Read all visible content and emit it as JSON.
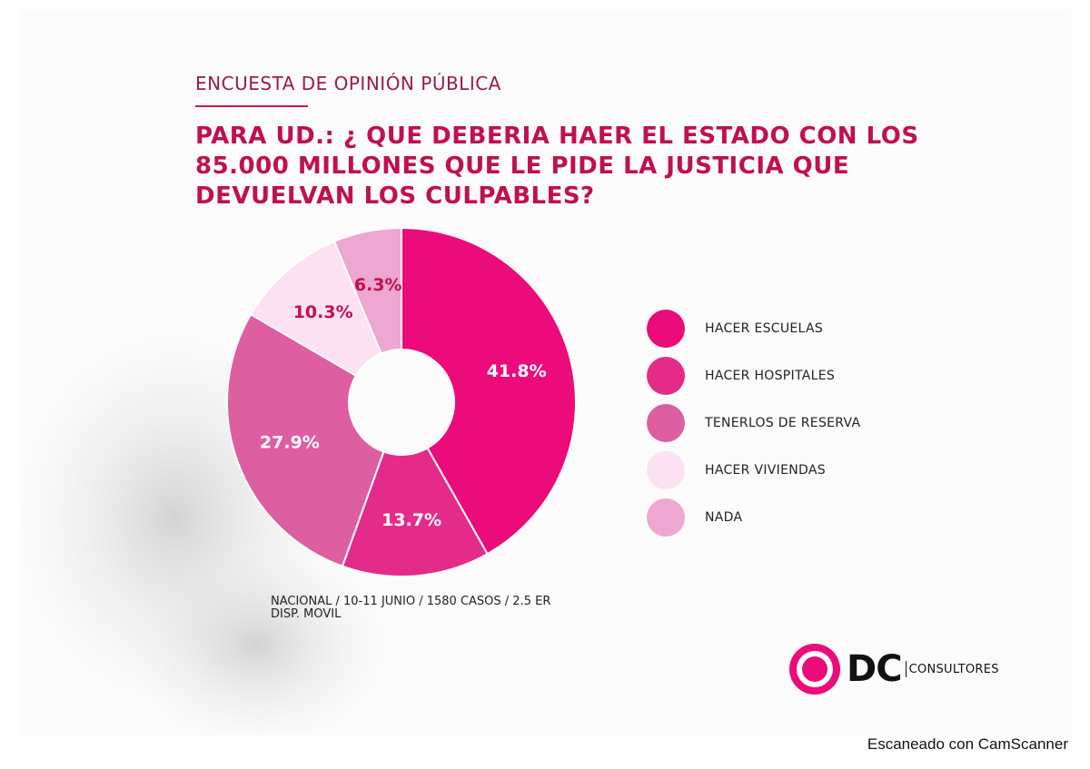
{
  "header": {
    "kicker": "ENCUESTA DE OPINIÓN PÚBLICA",
    "question": "PARA UD.: ¿ QUE DEBERIA HAER EL ESTADO CON LOS 85.000 MILLONES QUE LE PIDE LA JUSTICIA QUE DEVUELVAN LOS CULPABLES?"
  },
  "chart_data": {
    "type": "pie",
    "variant": "donut",
    "title": "PARA UD.: ¿ QUE DEBERIA HAER EL ESTADO CON LOS 85.000 MILLONES QUE LE PIDE LA JUSTICIA QUE DEVUELVAN LOS CULPABLES?",
    "legend_position": "right",
    "slices": [
      {
        "name": "HACER ESCUELAS",
        "value": 41.8,
        "label": "41.8%",
        "color": "#ec0b7a"
      },
      {
        "name": "HACER HOSPITALES",
        "value": 13.7,
        "label": "13.7%",
        "color": "#e52b8a"
      },
      {
        "name": "TENERLOS DE RESERVA",
        "value": 27.9,
        "label": "27.9%",
        "color": "#dd5ea1"
      },
      {
        "name": "HACER VIVIENDAS",
        "value": 10.3,
        "label": "10.3%",
        "color": "#fbe1f2"
      },
      {
        "name": "NADA",
        "value": 6.3,
        "label": "6.3%",
        "color": "#eda7d0"
      }
    ]
  },
  "footnote": {
    "line1": "NACIONAL / 10-11 JUNIO / 1580 CASOS / 2.5 ER",
    "line2": "DISP. MOVIL"
  },
  "logo": {
    "mark": "DC",
    "text": "CONSULTORES",
    "ring_color": "#ec0b7a",
    "icon": "target-rings-icon"
  },
  "watermark": {
    "text": "Escaneado con CamScanner"
  }
}
